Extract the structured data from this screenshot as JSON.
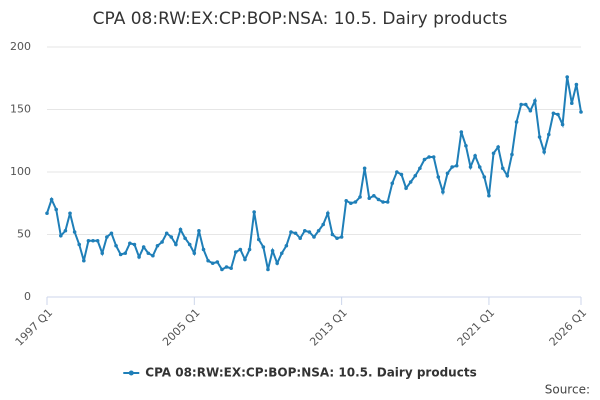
{
  "chart_data": {
    "type": "line",
    "title": "CPA 08:RW:EX:CP:BOP:NSA: 10.5. Dairy products",
    "source": "Source:",
    "categories": [
      "1997 Q1",
      null,
      null,
      null,
      null,
      null,
      null,
      null,
      null,
      null,
      null,
      null,
      null,
      null,
      null,
      null,
      null,
      null,
      null,
      null,
      null,
      null,
      null,
      null,
      null,
      null,
      null,
      null,
      null,
      null,
      null,
      null,
      "2005 Q1",
      null,
      null,
      null,
      null,
      null,
      null,
      null,
      null,
      null,
      null,
      null,
      null,
      null,
      null,
      null,
      null,
      null,
      null,
      null,
      null,
      null,
      null,
      null,
      null,
      null,
      null,
      null,
      null,
      null,
      null,
      null,
      "2013 Q1",
      null,
      null,
      null,
      null,
      null,
      null,
      null,
      null,
      null,
      null,
      null,
      null,
      null,
      null,
      null,
      null,
      null,
      null,
      null,
      null,
      null,
      null,
      null,
      null,
      null,
      null,
      null,
      null,
      null,
      null,
      null,
      "2021 Q1",
      null,
      null,
      null,
      null,
      null,
      null,
      null,
      null,
      null,
      null,
      null,
      null,
      null,
      null,
      null,
      null,
      null,
      null,
      null,
      "2026 Q1"
    ],
    "series": [
      {
        "name": "CPA 08:RW:EX:CP:BOP:NSA: 10.5. Dairy products",
        "color": "#1f7fb8",
        "values": [
          67,
          78,
          70,
          49,
          53,
          67,
          52,
          42,
          29,
          45,
          45,
          45,
          35,
          48,
          51,
          41,
          34,
          35,
          43,
          42,
          32,
          40,
          35,
          33,
          41,
          44,
          51,
          48,
          42,
          54,
          47,
          42,
          35,
          53,
          38,
          29,
          27,
          28,
          22,
          24,
          23,
          36,
          38,
          30,
          38,
          68,
          46,
          40,
          22,
          37,
          27,
          35,
          41,
          52,
          51,
          47,
          53,
          52,
          48,
          53,
          58,
          67,
          50,
          47,
          48,
          77,
          75,
          76,
          80,
          103,
          79,
          81,
          78,
          76,
          76,
          91,
          100,
          98,
          87,
          92,
          97,
          103,
          110,
          112,
          112,
          96,
          84,
          99,
          104,
          105,
          132,
          121,
          104,
          113,
          104,
          96,
          81,
          115,
          120,
          103,
          97,
          114,
          140,
          154,
          154,
          149,
          157,
          128,
          116,
          130,
          147,
          146,
          138,
          176,
          155,
          170,
          148
        ]
      }
    ],
    "ylim": [
      0,
      200
    ],
    "yticks": [
      0,
      50,
      100,
      150,
      200
    ],
    "grid": true
  }
}
